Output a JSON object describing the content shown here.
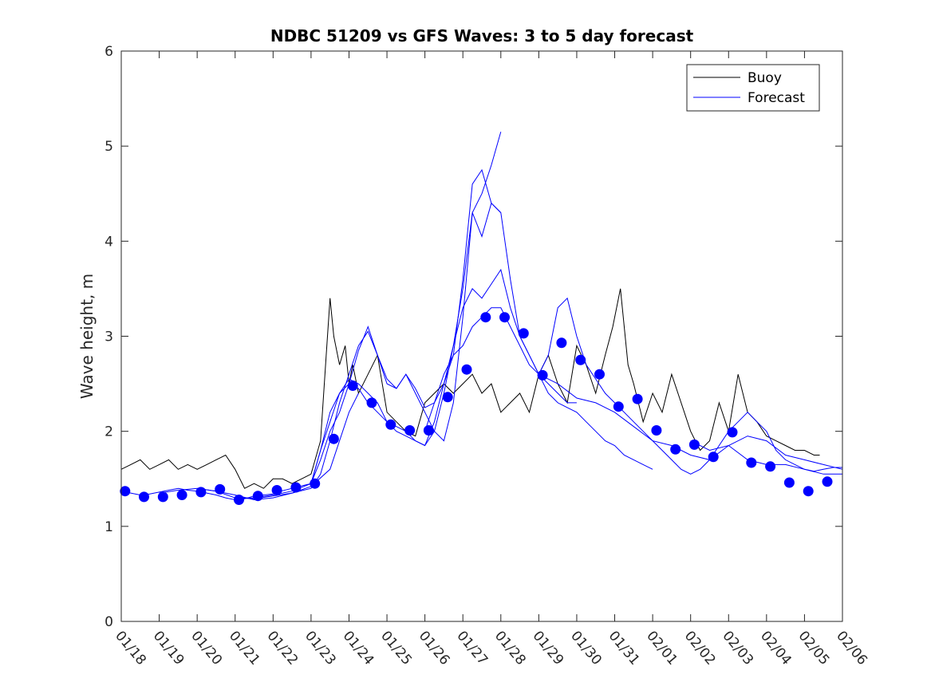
{
  "chart_data": {
    "type": "line",
    "title": "NDBC 51209 vs GFS Waves: 3 to 5 day forecast",
    "xlabel": "",
    "ylabel": "Wave height, m",
    "xlim": [
      0,
      19
    ],
    "ylim": [
      0,
      6
    ],
    "x_tick_labels": [
      "01/18",
      "01/19",
      "01/20",
      "01/21",
      "01/22",
      "01/23",
      "01/24",
      "01/25",
      "01/26",
      "01/27",
      "01/28",
      "01/29",
      "01/30",
      "01/31",
      "02/01",
      "02/02",
      "02/03",
      "02/04",
      "02/05",
      "02/06"
    ],
    "y_ticks": [
      0,
      1,
      2,
      3,
      4,
      5,
      6
    ],
    "grid": false,
    "legend_position": "top-right",
    "colors": {
      "buoy": "#000000",
      "forecast": "#0000ff"
    },
    "legend": [
      {
        "key": "buoy",
        "label": "Buoy"
      },
      {
        "key": "forecast",
        "label": "Forecast"
      }
    ],
    "buoy": {
      "name": "Buoy",
      "x": [
        0.0,
        0.25,
        0.5,
        0.75,
        1.0,
        1.25,
        1.5,
        1.75,
        2.0,
        2.25,
        2.5,
        2.75,
        3.0,
        3.25,
        3.5,
        3.75,
        4.0,
        4.25,
        4.5,
        4.75,
        5.0,
        5.25,
        5.4,
        5.5,
        5.6,
        5.75,
        5.9,
        6.0,
        6.1,
        6.25,
        6.5,
        6.75,
        7.0,
        7.25,
        7.5,
        7.75,
        8.0,
        8.25,
        8.5,
        8.75,
        9.0,
        9.25,
        9.5,
        9.75,
        10.0,
        10.25,
        10.5,
        10.75,
        11.0,
        11.25,
        11.5,
        11.75,
        12.0,
        12.25,
        12.5,
        12.75,
        12.95,
        13.15,
        13.35,
        13.5,
        13.75,
        14.0,
        14.25,
        14.5,
        14.75,
        15.0,
        15.25,
        15.5,
        15.75,
        16.0,
        16.25,
        16.5,
        16.75,
        17.0,
        17.25,
        17.5,
        17.75,
        18.0,
        18.25,
        18.4
      ],
      "y": [
        1.6,
        1.65,
        1.7,
        1.6,
        1.65,
        1.7,
        1.6,
        1.65,
        1.6,
        1.65,
        1.7,
        1.75,
        1.6,
        1.4,
        1.45,
        1.4,
        1.5,
        1.5,
        1.45,
        1.5,
        1.55,
        1.9,
        2.8,
        3.4,
        3.0,
        2.7,
        2.9,
        2.5,
        2.7,
        2.4,
        2.6,
        2.8,
        2.2,
        2.1,
        2.0,
        1.95,
        2.3,
        2.4,
        2.5,
        2.4,
        2.5,
        2.6,
        2.4,
        2.5,
        2.2,
        2.3,
        2.4,
        2.2,
        2.6,
        2.8,
        2.5,
        2.3,
        2.9,
        2.7,
        2.4,
        2.8,
        3.1,
        3.5,
        2.7,
        2.5,
        2.1,
        2.4,
        2.2,
        2.6,
        2.3,
        2.0,
        1.8,
        1.9,
        2.3,
        2.0,
        2.6,
        2.2,
        2.1,
        1.95,
        1.9,
        1.85,
        1.8,
        1.8,
        1.75,
        1.75
      ]
    },
    "forecast_runs": [
      {
        "name": "Forecast",
        "x": [
          0.0,
          0.25,
          0.5,
          0.75,
          1.0,
          1.25,
          1.5,
          1.75,
          2.0,
          2.25,
          2.5,
          2.75,
          3.0,
          3.25,
          3.5,
          3.75,
          4.0
        ],
        "y": [
          1.37,
          1.35,
          1.33,
          1.34,
          1.36,
          1.38,
          1.4,
          1.38,
          1.37,
          1.35,
          1.33,
          1.3,
          1.28,
          1.29,
          1.32,
          1.33,
          1.34
        ]
      },
      {
        "name": "Forecast",
        "x": [
          1.0,
          1.5,
          2.0,
          2.5,
          3.0,
          3.5,
          4.0,
          4.5,
          5.0,
          5.5,
          6.0,
          6.25
        ],
        "y": [
          1.35,
          1.38,
          1.4,
          1.37,
          1.33,
          1.28,
          1.3,
          1.35,
          1.42,
          1.6,
          2.2,
          2.4
        ]
      },
      {
        "name": "Forecast",
        "x": [
          2.0,
          2.5,
          3.0,
          3.5,
          4.0,
          4.5,
          5.0,
          5.25,
          5.5,
          5.75,
          6.0,
          6.25,
          6.5,
          6.75,
          7.0,
          7.25,
          7.5,
          7.75,
          8.0,
          8.25,
          8.5,
          8.75,
          9.0,
          9.25,
          9.5,
          9.75,
          10.0
        ],
        "y": [
          1.4,
          1.37,
          1.3,
          1.29,
          1.32,
          1.35,
          1.4,
          1.55,
          1.9,
          2.3,
          2.6,
          2.9,
          3.05,
          2.8,
          2.55,
          2.45,
          2.6,
          2.45,
          2.25,
          2.3,
          2.5,
          2.8,
          3.6,
          4.6,
          4.75,
          4.4,
          4.3
        ]
      },
      {
        "name": "Forecast",
        "x": [
          3.0,
          3.5,
          4.0,
          4.5,
          5.0,
          5.25,
          5.5,
          5.75,
          6.0,
          6.25,
          6.5,
          6.75,
          7.0,
          7.25,
          7.5,
          7.75,
          8.0,
          8.25,
          8.5,
          8.75,
          9.0,
          9.25,
          9.5,
          9.75,
          10.0
        ],
        "y": [
          1.3,
          1.3,
          1.33,
          1.37,
          1.45,
          1.7,
          2.0,
          2.2,
          2.5,
          2.85,
          3.1,
          2.8,
          2.5,
          2.45,
          2.6,
          2.4,
          2.2,
          2.0,
          1.9,
          2.3,
          3.2,
          4.3,
          4.5,
          4.8,
          5.15
        ]
      },
      {
        "name": "Forecast",
        "x": [
          4.0,
          4.5,
          5.0,
          5.25,
          5.5,
          5.75,
          6.0,
          6.25,
          6.5,
          6.75,
          7.0,
          7.25,
          7.5,
          7.75,
          8.0,
          8.25,
          8.5,
          8.75,
          9.0,
          9.25,
          9.5,
          9.75,
          10.0,
          10.25,
          10.5,
          10.75,
          11.0,
          11.25,
          11.5,
          11.75,
          12.0
        ],
        "y": [
          1.35,
          1.4,
          1.45,
          1.8,
          2.2,
          2.4,
          2.55,
          2.5,
          2.4,
          2.3,
          2.1,
          2.05,
          2.0,
          1.9,
          1.85,
          2.0,
          2.4,
          2.9,
          3.5,
          4.3,
          4.05,
          4.4,
          4.3,
          3.6,
          3.0,
          2.8,
          2.6,
          2.5,
          2.4,
          2.3,
          2.3
        ]
      },
      {
        "name": "Forecast",
        "x": [
          5.0,
          5.25,
          5.5,
          5.75,
          6.0,
          6.25,
          6.5,
          6.75,
          7.0,
          7.25,
          7.5,
          7.75,
          8.0,
          8.25,
          8.5,
          8.75,
          9.0,
          9.25,
          9.5,
          9.75,
          10.0,
          10.25,
          10.5,
          10.75,
          11.0,
          11.25,
          11.5,
          11.75,
          12.0,
          12.25,
          12.5,
          12.75,
          13.0,
          13.25,
          13.5,
          13.75,
          14.0
        ],
        "y": [
          1.45,
          1.8,
          2.1,
          2.4,
          2.5,
          2.45,
          2.3,
          2.2,
          2.1,
          2.0,
          1.95,
          1.9,
          1.85,
          2.1,
          2.5,
          2.9,
          3.3,
          3.5,
          3.4,
          3.55,
          3.7,
          3.3,
          3.0,
          2.8,
          2.6,
          2.4,
          2.3,
          2.25,
          2.2,
          2.1,
          2.0,
          1.9,
          1.85,
          1.75,
          1.7,
          1.65,
          1.6
        ]
      },
      {
        "name": "Forecast",
        "x": [
          8.0,
          8.25,
          8.5,
          8.75,
          9.0,
          9.25,
          9.5,
          9.75,
          10.0,
          10.25,
          10.5,
          10.75,
          11.0,
          11.25,
          11.5,
          11.75,
          12.0,
          12.25,
          12.5,
          12.75,
          13.0,
          13.25,
          13.5,
          13.75,
          14.0,
          14.25,
          14.5,
          14.75,
          15.0,
          15.25,
          15.5,
          15.75,
          16.0,
          16.25,
          16.5,
          16.75,
          17.0,
          17.25,
          17.5,
          17.75,
          18.0,
          18.25,
          18.5,
          18.75,
          19.0
        ],
        "y": [
          2.0,
          2.3,
          2.6,
          2.8,
          2.9,
          3.1,
          3.2,
          3.3,
          3.3,
          3.1,
          2.9,
          2.7,
          2.6,
          2.8,
          3.3,
          3.4,
          3.0,
          2.7,
          2.55,
          2.4,
          2.3,
          2.2,
          2.1,
          2.0,
          1.9,
          1.8,
          1.7,
          1.6,
          1.55,
          1.6,
          1.7,
          1.85,
          2.0,
          2.1,
          2.2,
          2.1,
          2.0,
          1.8,
          1.7,
          1.65,
          1.6,
          1.58,
          1.6,
          1.62,
          1.62
        ]
      },
      {
        "name": "Forecast",
        "x": [
          11.0,
          11.5,
          12.0,
          12.5,
          13.0,
          13.5,
          14.0,
          14.5,
          15.0,
          15.5,
          16.0,
          16.5,
          17.0,
          17.5,
          18.0,
          18.5,
          19.0
        ],
        "y": [
          2.6,
          2.5,
          2.35,
          2.3,
          2.2,
          2.05,
          1.9,
          1.85,
          1.75,
          1.7,
          1.85,
          1.95,
          1.9,
          1.75,
          1.7,
          1.65,
          1.6
        ]
      },
      {
        "name": "Forecast",
        "x": [
          15.0,
          15.5,
          16.0,
          16.5,
          17.0,
          17.5,
          18.0,
          18.5,
          19.0
        ],
        "y": [
          1.9,
          1.8,
          1.85,
          1.7,
          1.65,
          1.65,
          1.6,
          1.55,
          1.55
        ]
      }
    ],
    "forecast_points": {
      "name": "Forecast",
      "x": [
        0.1,
        0.6,
        1.1,
        1.6,
        2.1,
        2.6,
        3.1,
        3.6,
        4.1,
        4.6,
        5.1,
        5.6,
        6.1,
        6.6,
        7.1,
        7.6,
        8.1,
        8.6,
        9.1,
        9.6,
        10.1,
        10.6,
        11.1,
        11.6,
        12.1,
        12.6,
        13.1,
        13.6,
        14.1,
        14.6,
        15.1,
        15.6,
        16.1,
        16.6,
        17.1,
        17.6,
        18.1,
        18.6
      ],
      "y": [
        1.37,
        1.31,
        1.31,
        1.33,
        1.36,
        1.39,
        1.28,
        1.32,
        1.38,
        1.41,
        1.45,
        1.92,
        2.48,
        2.3,
        2.07,
        2.01,
        2.01,
        2.36,
        2.65,
        3.2,
        3.2,
        3.03,
        2.59,
        2.93,
        2.75,
        2.6,
        2.26,
        2.34,
        2.01,
        1.81,
        1.86,
        1.73,
        1.99,
        1.67,
        1.63,
        1.46,
        1.37,
        1.47
      ]
    }
  }
}
